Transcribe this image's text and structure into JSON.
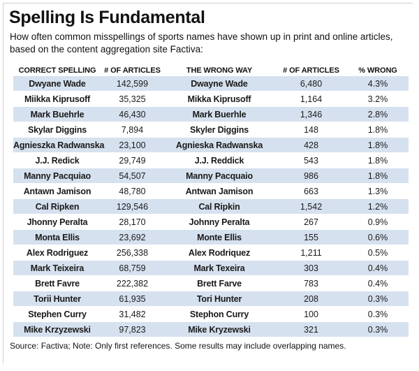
{
  "header": {
    "title": "Spelling Is Fundamental",
    "subtitle": "How often common misspellings of sports names have shown up in print and online articles, based on the content aggregation site Factiva:"
  },
  "footer": {
    "source": "Source: Factiva; Note: Only first references. Some results may include overlapping names."
  },
  "colors": {
    "row_shade": "#d6e1ef",
    "row_plain": "#ffffff"
  },
  "chart_data": {
    "type": "table",
    "title": "Spelling Is Fundamental",
    "columns": [
      "CORRECT SPELLING",
      "# OF ARTICLES",
      "THE WRONG WAY",
      "# OF ARTICLES",
      "% WRONG"
    ],
    "rows": [
      [
        "Dwyane Wade",
        "142,599",
        "Dwayne Wade",
        "6,480",
        "4.3%"
      ],
      [
        "Miikka Kiprusoff",
        "35,325",
        "Mikka Kiprusoff",
        "1,164",
        "3.2%"
      ],
      [
        "Mark Buehrle",
        "46,430",
        "Mark Buerhle",
        "1,346",
        "2.8%"
      ],
      [
        "Skylar Diggins",
        "7,894",
        "Skyler Diggins",
        "148",
        "1.8%"
      ],
      [
        "Agnieszka Radwanska",
        "23,100",
        "Agnieska Radwanska",
        "428",
        "1.8%"
      ],
      [
        "J.J. Redick",
        "29,749",
        "J.J. Reddick",
        "543",
        "1.8%"
      ],
      [
        "Manny Pacquiao",
        "54,507",
        "Manny Pacquaio",
        "986",
        "1.8%"
      ],
      [
        "Antawn Jamison",
        "48,780",
        "Antwan Jamison",
        "663",
        "1.3%"
      ],
      [
        "Cal Ripken",
        "129,546",
        "Cal Ripkin",
        "1,542",
        "1.2%"
      ],
      [
        "Jhonny Peralta",
        "28,170",
        "Johnny Peralta",
        "267",
        "0.9%"
      ],
      [
        "Monta Ellis",
        "23,692",
        "Monte Ellis",
        "155",
        "0.6%"
      ],
      [
        "Alex Rodriguez",
        "256,338",
        "Alex Rodriquez",
        "1,211",
        "0.5%"
      ],
      [
        "Mark Teixeira",
        "68,759",
        "Mark Texeira",
        "303",
        "0.4%"
      ],
      [
        "Brett Favre",
        "222,382",
        "Brett Farve",
        "783",
        "0.4%"
      ],
      [
        "Torii Hunter",
        "61,935",
        "Tori Hunter",
        "208",
        "0.3%"
      ],
      [
        "Stephen Curry",
        "31,482",
        "Stephon Curry",
        "100",
        "0.3%"
      ],
      [
        "Mike Krzyzewski",
        "97,823",
        "Mike Kryzewski",
        "321",
        "0.3%"
      ]
    ]
  }
}
